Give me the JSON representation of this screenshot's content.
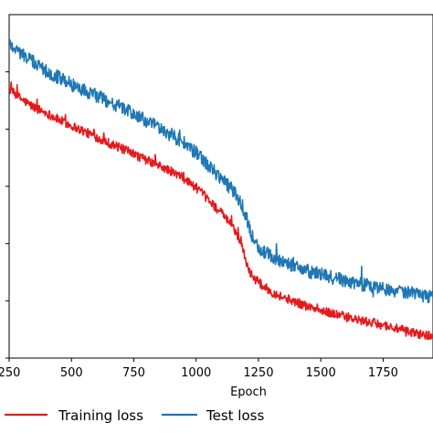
{
  "chart_data": {
    "type": "line",
    "title": "",
    "xlabel": "Epoch",
    "ylabel": "",
    "xlim": [
      250,
      1950
    ],
    "ylim": [
      0.0,
      0.3
    ],
    "x_ticks": [
      250,
      500,
      750,
      1000,
      1250,
      1500,
      1750
    ],
    "x_tick_labels": [
      "250",
      "500",
      "750",
      "1000",
      "1250",
      "1500",
      "1750"
    ],
    "y_ticks": [
      0.0,
      0.05,
      0.1,
      0.15,
      0.2,
      0.25
    ],
    "grid": false,
    "legend_position": "bottom",
    "series": [
      {
        "name": "Training loss",
        "color": "#e41a1c",
        "x": [
          250,
          300,
          350,
          400,
          450,
          500,
          550,
          600,
          650,
          700,
          750,
          800,
          850,
          900,
          950,
          1000,
          1050,
          1100,
          1150,
          1180,
          1200,
          1220,
          1250,
          1300,
          1350,
          1400,
          1450,
          1500,
          1550,
          1600,
          1650,
          1700,
          1750,
          1800,
          1850,
          1900,
          1950
        ],
        "values": [
          0.235,
          0.226,
          0.219,
          0.214,
          0.208,
          0.203,
          0.198,
          0.193,
          0.188,
          0.183,
          0.178,
          0.173,
          0.168,
          0.163,
          0.157,
          0.149,
          0.138,
          0.127,
          0.114,
          0.101,
          0.085,
          0.073,
          0.066,
          0.058,
          0.053,
          0.049,
          0.045,
          0.041,
          0.039,
          0.036,
          0.033,
          0.031,
          0.029,
          0.026,
          0.023,
          0.021,
          0.019
        ],
        "noise": 0.004
      },
      {
        "name": "Test loss",
        "color": "#1f77b4",
        "x": [
          250,
          300,
          350,
          400,
          450,
          500,
          550,
          600,
          650,
          700,
          750,
          800,
          850,
          900,
          950,
          1000,
          1050,
          1100,
          1150,
          1180,
          1200,
          1220,
          1250,
          1300,
          1350,
          1400,
          1450,
          1500,
          1550,
          1600,
          1650,
          1700,
          1750,
          1800,
          1850,
          1900,
          1950
        ],
        "values": [
          0.275,
          0.266,
          0.258,
          0.251,
          0.245,
          0.239,
          0.234,
          0.229,
          0.224,
          0.219,
          0.213,
          0.207,
          0.201,
          0.195,
          0.188,
          0.179,
          0.168,
          0.157,
          0.146,
          0.136,
          0.124,
          0.109,
          0.096,
          0.089,
          0.084,
          0.08,
          0.076,
          0.073,
          0.07,
          0.068,
          0.065,
          0.063,
          0.061,
          0.059,
          0.057,
          0.055,
          0.053
        ],
        "noise": 0.006
      }
    ]
  }
}
